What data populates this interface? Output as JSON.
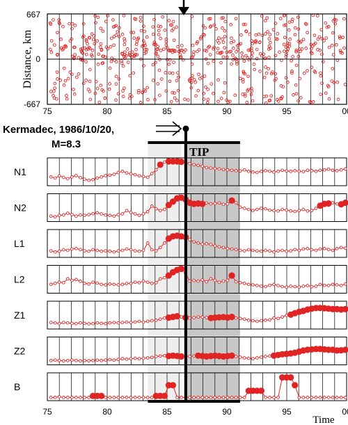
{
  "chart_data": [
    {
      "type": "scatter",
      "ylabel": "Distance, km",
      "xlim": [
        75,
        100
      ],
      "ylim": [
        -667,
        667
      ],
      "x_tick_labels": [
        "75",
        "80",
        "85",
        "90",
        "95",
        "00"
      ],
      "y_tick_labels": [
        "667",
        "0",
        "-667"
      ],
      "event_year": 86.3,
      "marker_color": "#e02424"
    },
    {
      "type": "line",
      "event": {
        "label_line1": "Kermadec, 1986/10/20,",
        "label_line2": "M=8.3",
        "year": 86.3
      },
      "tip": {
        "label": "TIP",
        "start": 86.4,
        "end": 91.1
      },
      "precursor_window": {
        "start": 83.4,
        "end": 86.2
      },
      "xlim": [
        75,
        100
      ],
      "x_tick_labels": [
        "75",
        "80",
        "85",
        "90",
        "95",
        "00"
      ],
      "xlabel": "Time",
      "series_color": "#e02424",
      "series": [
        {
          "name": "N1",
          "values": [
            0.3,
            0.25,
            0.35,
            0.28,
            0.22,
            0.3,
            0.36,
            0.27,
            0.2,
            0.15,
            0.18,
            0.25,
            0.3,
            0.36,
            0.38,
            0.42,
            0.5,
            0.55,
            0.48,
            0.44,
            0.4,
            0.35,
            0.32,
            0.28,
            0.45,
            0.62,
            0.85,
            0.97,
            1.0,
            1.0,
            1.0,
            0.98,
            0.95,
            0.9,
            0.85,
            0.82,
            0.78,
            0.72,
            0.7,
            0.68,
            0.66,
            0.63,
            0.62,
            0.6,
            0.58,
            0.57,
            0.62,
            0.55,
            0.52,
            0.5,
            0.55,
            0.58,
            0.56,
            0.52,
            0.55,
            0.6,
            0.57,
            0.55,
            0.58,
            0.56,
            0.54,
            0.6,
            0.58,
            0.55,
            0.6,
            0.62,
            0.65,
            0.6,
            0.58,
            0.62,
            0.66
          ],
          "big_points": [
            26,
            28,
            29,
            30,
            31
          ]
        },
        {
          "name": "N2",
          "values": [
            0.15,
            0.12,
            0.18,
            0.2,
            0.28,
            0.22,
            0.15,
            0.2,
            0.18,
            0.22,
            0.26,
            0.3,
            0.25,
            0.2,
            0.18,
            0.15,
            0.22,
            0.25,
            0.4,
            0.32,
            0.25,
            0.18,
            0.25,
            0.35,
            0.6,
            0.48,
            0.4,
            0.45,
            0.65,
            0.8,
            0.95,
            0.98,
            0.9,
            0.75,
            0.7,
            0.72,
            0.7,
            0.74,
            0.7,
            0.72,
            0.74,
            0.68,
            0.7,
            0.85,
            0.75,
            0.55,
            0.5,
            0.45,
            0.4,
            0.45,
            0.5,
            0.48,
            0.42,
            0.4,
            0.38,
            0.45,
            0.42,
            0.38,
            0.36,
            0.4,
            0.45,
            0.38,
            0.4,
            0.5,
            0.62,
            0.7,
            0.72,
            0.75,
            0.7,
            0.68,
            0.75
          ],
          "big_points": [
            28,
            29,
            30,
            31,
            32,
            33,
            34,
            35,
            36,
            43,
            64,
            65,
            66,
            69,
            70
          ]
        },
        {
          "name": "L1",
          "values": [
            0.2,
            0.15,
            0.18,
            0.25,
            0.22,
            0.28,
            0.3,
            0.26,
            0.2,
            0.18,
            0.25,
            0.22,
            0.18,
            0.2,
            0.18,
            0.15,
            0.2,
            0.22,
            0.28,
            0.25,
            0.2,
            0.18,
            0.22,
            0.55,
            0.25,
            0.2,
            0.35,
            0.55,
            0.75,
            0.85,
            0.88,
            0.85,
            0.82,
            0.7,
            0.6,
            0.55,
            0.5,
            0.52,
            0.48,
            0.42,
            0.38,
            0.35,
            0.3,
            0.28,
            0.26,
            0.22,
            0.2,
            0.25,
            0.22,
            0.2,
            0.18,
            0.22,
            0.2,
            0.15,
            0.2,
            0.22,
            0.18,
            0.2,
            0.26,
            0.22,
            0.28,
            0.3,
            0.25,
            0.22,
            0.28,
            0.3,
            0.26,
            0.22,
            0.3,
            0.35,
            0.32
          ],
          "big_points": [
            28,
            29,
            30,
            31,
            32
          ]
        },
        {
          "name": "L2",
          "values": [
            0.3,
            0.35,
            0.4,
            0.38,
            0.55,
            0.48,
            0.52,
            0.44,
            0.35,
            0.32,
            0.4,
            0.36,
            0.3,
            0.28,
            0.32,
            0.3,
            0.28,
            0.3,
            0.34,
            0.35,
            0.4,
            0.38,
            0.45,
            0.4,
            0.35,
            0.38,
            0.55,
            0.6,
            0.7,
            0.85,
            0.95,
            1.0,
            0.8,
            0.45,
            0.48,
            0.45,
            0.5,
            0.42,
            0.55,
            0.48,
            0.4,
            0.45,
            0.48,
            0.7,
            0.42,
            0.38,
            0.35,
            0.3,
            0.28,
            0.25,
            0.22,
            0.2,
            0.26,
            0.3,
            0.25,
            0.2,
            0.18,
            0.22,
            0.2,
            0.18,
            0.22,
            0.25,
            0.2,
            0.22,
            0.3,
            0.26,
            0.25,
            0.3,
            0.28,
            0.25,
            0.32
          ],
          "big_points": [
            28,
            29,
            30,
            31,
            43
          ]
        },
        {
          "name": "Z1",
          "values": [
            0.2,
            0.18,
            0.15,
            0.2,
            0.18,
            0.16,
            0.15,
            0.18,
            0.16,
            0.14,
            0.15,
            0.18,
            0.16,
            0.15,
            0.18,
            0.2,
            0.18,
            0.2,
            0.22,
            0.2,
            0.22,
            0.25,
            0.22,
            0.25,
            0.28,
            0.3,
            0.35,
            0.4,
            0.42,
            0.45,
            0.48,
            0.45,
            0.42,
            0.4,
            0.42,
            0.45,
            0.44,
            0.42,
            0.4,
            0.42,
            0.43,
            0.44,
            0.42,
            0.45,
            0.4,
            0.38,
            0.35,
            0.3,
            0.28,
            0.25,
            0.28,
            0.3,
            0.32,
            0.4,
            0.38,
            0.45,
            0.52,
            0.55,
            0.62,
            0.68,
            0.72,
            0.78,
            0.82,
            0.85,
            0.85,
            0.84,
            0.82,
            0.8,
            0.8,
            0.78,
            0.8
          ],
          "big_points": [
            28,
            29,
            30,
            32,
            38,
            39,
            40,
            41,
            42,
            43,
            57,
            58,
            59,
            60,
            61,
            62,
            63,
            64,
            65,
            66,
            67,
            68,
            69,
            70
          ]
        },
        {
          "name": "Z2",
          "values": [
            0.1,
            0.12,
            0.1,
            0.08,
            0.1,
            0.12,
            0.1,
            0.08,
            0.1,
            0.09,
            0.1,
            0.12,
            0.1,
            0.12,
            0.14,
            0.12,
            0.15,
            0.18,
            0.16,
            0.18,
            0.2,
            0.18,
            0.2,
            0.22,
            0.24,
            0.28,
            0.3,
            0.32,
            0.3,
            0.32,
            0.3,
            0.28,
            0.3,
            0.28,
            0.3,
            0.32,
            0.3,
            0.28,
            0.3,
            0.32,
            0.3,
            0.28,
            0.3,
            0.32,
            0.28,
            0.25,
            0.22,
            0.2,
            0.18,
            0.22,
            0.25,
            0.28,
            0.3,
            0.32,
            0.35,
            0.38,
            0.4,
            0.42,
            0.45,
            0.5,
            0.55,
            0.58,
            0.6,
            0.62,
            0.62,
            0.6,
            0.58,
            0.58,
            0.55,
            0.56,
            0.58
          ],
          "big_points": [
            28,
            29,
            30,
            31,
            35,
            36,
            37,
            38,
            39,
            40,
            41,
            42,
            43,
            53,
            54,
            55,
            56,
            57,
            58,
            59,
            60,
            61,
            62,
            63,
            64,
            65,
            66,
            67,
            68,
            69,
            70
          ]
        },
        {
          "name": "B",
          "values": [
            0.05,
            0.05,
            0.08,
            0.05,
            0.05,
            0.05,
            0.05,
            0.05,
            0.05,
            0.05,
            0.12,
            0.12,
            0.12,
            0.05,
            0.05,
            0.05,
            0.05,
            0.05,
            0.05,
            0.05,
            0.05,
            0.05,
            0.05,
            0.05,
            0.05,
            0.12,
            0.12,
            0.12,
            0.6,
            0.6,
            0.05,
            0.05,
            0.05,
            0.05,
            0.05,
            0.05,
            0.05,
            0.05,
            0.05,
            0.05,
            0.05,
            0.05,
            0.05,
            0.05,
            0.05,
            0.05,
            0.05,
            0.35,
            0.35,
            0.35,
            0.35,
            0.05,
            0.05,
            0.05,
            0.05,
            0.95,
            0.95,
            0.95,
            0.6,
            0.05,
            0.05,
            0.05,
            0.05,
            0.05,
            0.05,
            0.05,
            0.05,
            0.05,
            0.05,
            0.05,
            0.05
          ],
          "big_points": [
            10,
            11,
            12,
            25,
            26,
            27,
            28,
            29,
            47,
            48,
            49,
            50,
            55,
            56,
            57,
            58
          ]
        }
      ]
    }
  ]
}
